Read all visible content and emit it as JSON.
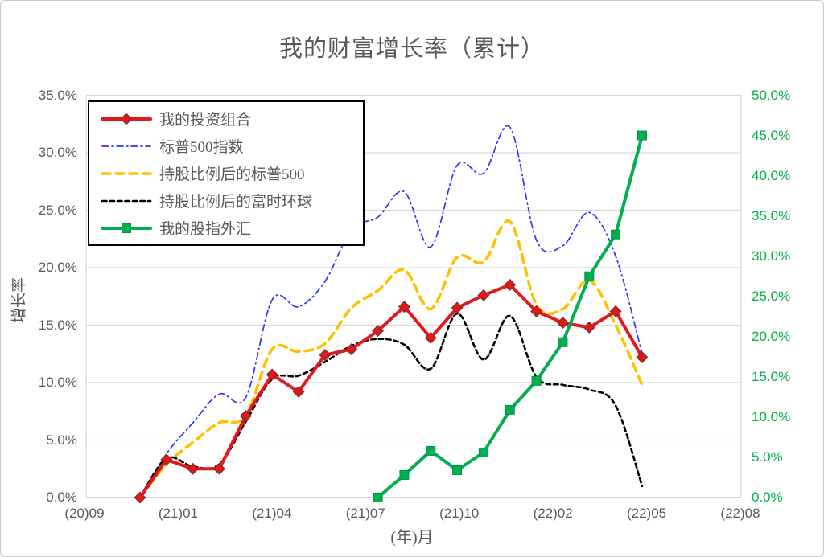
{
  "title": "我的财富增长率（累计）",
  "chart_data": {
    "type": "line",
    "title": "我的财富增长率（累计）",
    "legend_position": "top-left",
    "grid": "horizontal",
    "x_axis": {
      "title": "(年)月",
      "tick_labels": [
        "(20)09",
        "(21)01",
        "(21)04",
        "(21)07",
        "(21)10",
        "(22)02",
        "(22)05",
        "(22)08"
      ]
    },
    "y_axis_left": {
      "title": "增长率",
      "range": [
        0,
        35
      ],
      "step": 5,
      "tick_labels": [
        "35.0%",
        "30.0%",
        "25.0%",
        "20.0%",
        "15.0%",
        "10.0%",
        "5.0%",
        "0.0%"
      ],
      "text_color": "#595959"
    },
    "y_axis_right": {
      "title": "",
      "range": [
        0,
        50
      ],
      "step": 5,
      "tick_labels": [
        "50.0%",
        "45.0%",
        "40.0%",
        "35.0%",
        "30.0%",
        "25.0%",
        "20.0%",
        "15.0%",
        "10.0%",
        "5.0%",
        "0.0%"
      ],
      "text_color": "#00B050"
    },
    "categories": [
      "(20)11",
      "(20)12",
      "(21)01",
      "(21)02",
      "(21)03",
      "(21)04",
      "(21)05",
      "(21)06",
      "(21)07",
      "(21)08",
      "(21)09",
      "(21)10",
      "(21)11",
      "(21)12",
      "(22)01",
      "(22)02",
      "(22)03",
      "(22)04",
      "(22)05",
      "(22)06"
    ],
    "series": [
      {
        "id": "portfolio",
        "name": "我的投资组合",
        "color": "#E2191C",
        "marker": "diamond",
        "marker_stroke": "#8B2A2A",
        "style": "solid-thick",
        "axis": "left",
        "smooth": false,
        "start_index": 0,
        "values": [
          0.0,
          3.3,
          2.5,
          2.5,
          7.1,
          10.7,
          9.2,
          12.4,
          12.9,
          14.5,
          16.6,
          13.9,
          16.5,
          17.6,
          18.5,
          16.2,
          15.2,
          14.8,
          16.2,
          12.2
        ]
      },
      {
        "id": "sp500",
        "name": "标普500指数",
        "color": "#3333FF",
        "marker": "none",
        "style": "dash-dot",
        "axis": "left",
        "smooth": true,
        "start_index": 0,
        "values": [
          0.0,
          3.8,
          6.5,
          9.0,
          8.7,
          17.2,
          16.6,
          18.8,
          23.3,
          24.4,
          26.6,
          21.8,
          28.9,
          28.2,
          32.2,
          22.4,
          21.9,
          24.8,
          21.0,
          12.5
        ]
      },
      {
        "id": "sp500-scaled",
        "name": "持股比例后的标普500",
        "color": "#FFC000",
        "marker": "none",
        "style": "dashed-thick",
        "axis": "left",
        "smooth": true,
        "start_index": 0,
        "values": [
          0.0,
          2.9,
          4.8,
          6.5,
          7.1,
          12.9,
          12.7,
          13.4,
          16.5,
          18.0,
          19.8,
          16.4,
          20.9,
          20.5,
          24.0,
          16.8,
          16.4,
          18.9,
          15.0,
          9.8
        ]
      },
      {
        "id": "ftse-scaled",
        "name": "持股比例后的富时环球",
        "color": "#000000",
        "marker": "none",
        "style": "dashed-fine",
        "axis": "left",
        "smooth": true,
        "start_index": 0,
        "values": [
          0.0,
          3.4,
          2.7,
          2.9,
          6.6,
          10.3,
          10.6,
          11.8,
          13.2,
          13.8,
          13.3,
          11.2,
          16.0,
          12.0,
          15.8,
          10.5,
          9.8,
          9.4,
          8.0,
          1.0
        ]
      },
      {
        "id": "forex",
        "name": "我的股指外汇",
        "color": "#00B050",
        "marker": "square",
        "marker_stroke": "#009247",
        "style": "solid-thick",
        "axis": "right",
        "smooth": false,
        "start_index": 9,
        "values": [
          0.0,
          2.8,
          5.8,
          3.4,
          5.6,
          10.9,
          14.5,
          19.3,
          27.5,
          32.7,
          45.0
        ]
      }
    ],
    "colors": {
      "grid": "#D9D9D9",
      "axis_line": "#BFBFBF",
      "text": "#595959"
    }
  }
}
